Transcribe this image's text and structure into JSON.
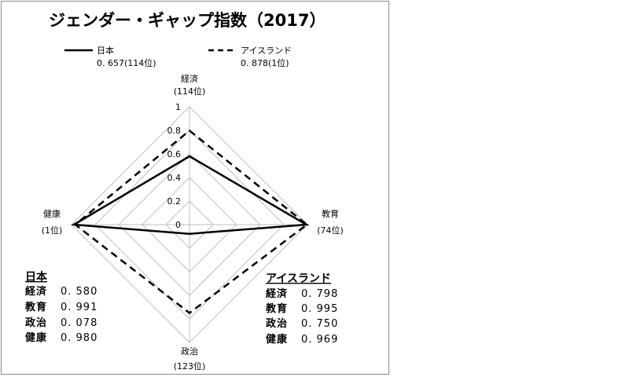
{
  "chart_data": {
    "type": "radar",
    "title": "ジェンダー・ギャップ指数（2017）",
    "axes": [
      {
        "name": "経済",
        "rank": "(114位)"
      },
      {
        "name": "教育",
        "rank": "(74位)"
      },
      {
        "name": "政治",
        "rank": "(123位)"
      },
      {
        "name": "健康",
        "rank": "(1位)"
      }
    ],
    "r_ticks": [
      "0",
      "0.2",
      "0.4",
      "0.6",
      "0.8",
      "1"
    ],
    "rlim": [
      0,
      1
    ],
    "series": [
      {
        "name": "日本",
        "legend_value": "0. 657(114位)",
        "style": "solid",
        "color": "#000000",
        "values": [
          0.58,
          0.991,
          0.078,
          0.98
        ]
      },
      {
        "name": "アイスランド",
        "legend_value": "0. 878(1位)",
        "style": "dashed",
        "color": "#000000",
        "values": [
          0.798,
          0.995,
          0.75,
          0.969
        ]
      }
    ],
    "tables": [
      {
        "header": "日本",
        "rows": [
          {
            "label": "経済",
            "value": "0. 580"
          },
          {
            "label": "教育",
            "value": "0. 991"
          },
          {
            "label": "政治",
            "value": "0. 078"
          },
          {
            "label": "健康",
            "value": "0. 980"
          }
        ]
      },
      {
        "header": "アイスランド",
        "rows": [
          {
            "label": "経済",
            "value": "0. 798"
          },
          {
            "label": "教育",
            "value": "0. 995"
          },
          {
            "label": "政治",
            "value": "0. 750"
          },
          {
            "label": "健康",
            "value": "0. 969"
          }
        ]
      }
    ],
    "grid_color": "#bfbfbf"
  }
}
